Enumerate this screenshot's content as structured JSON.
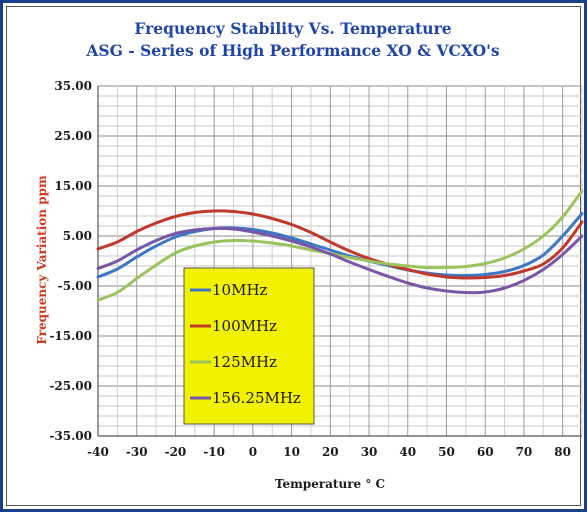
{
  "chart_data": {
    "type": "line",
    "title": "Frequency Stability Vs. Temperature",
    "subtitle": "ASG - Series of High Performance XO & VCXO's",
    "xlabel": "Temperature ° C",
    "ylabel": "Frequency Variation ppm",
    "xlim": [
      -40,
      85
    ],
    "ylim": [
      -35,
      35
    ],
    "x_ticks": [
      "-40",
      "-30",
      "-20",
      "-10",
      "0",
      "10",
      "20",
      "30",
      "40",
      "50",
      "60",
      "70",
      "80"
    ],
    "y_ticks": [
      "35.00",
      "25.00",
      "15.00",
      "5.00",
      "-5.00",
      "-15.00",
      "-25.00",
      "-35.00"
    ],
    "grid": true,
    "legend_position": "lower-left",
    "x": [
      -40,
      -35,
      -30,
      -25,
      -20,
      -15,
      -10,
      -5,
      0,
      5,
      10,
      15,
      20,
      25,
      30,
      35,
      40,
      45,
      50,
      55,
      60,
      65,
      70,
      75,
      80,
      85
    ],
    "series": [
      {
        "name": "10MHz",
        "color": "#3f77c7",
        "values": [
          -3.2,
          -1.6,
          0.8,
          3.0,
          4.8,
          5.9,
          6.5,
          6.6,
          6.3,
          5.6,
          4.6,
          3.4,
          2.2,
          1.0,
          0.0,
          -0.9,
          -1.8,
          -2.4,
          -2.8,
          -2.9,
          -2.7,
          -2.1,
          -0.9,
          1.2,
          5.0,
          9.5
        ]
      },
      {
        "name": "100MHz",
        "color": "#c0392b",
        "values": [
          2.4,
          3.8,
          5.9,
          7.6,
          8.9,
          9.7,
          10.0,
          9.9,
          9.4,
          8.5,
          7.3,
          5.7,
          3.8,
          2.0,
          0.5,
          -0.7,
          -1.7,
          -2.6,
          -3.2,
          -3.4,
          -3.3,
          -2.9,
          -2.0,
          -0.6,
          2.6,
          7.8
        ]
      },
      {
        "name": "125MHz",
        "color": "#9bc35b",
        "values": [
          -7.8,
          -6.3,
          -3.5,
          -0.8,
          1.6,
          3.0,
          3.8,
          4.1,
          4.0,
          3.6,
          3.0,
          2.2,
          1.5,
          0.7,
          0.0,
          -0.6,
          -1.0,
          -1.3,
          -1.3,
          -1.1,
          -0.5,
          0.6,
          2.4,
          5.0,
          8.8,
          14.0
        ]
      },
      {
        "name": "156.25MHz",
        "color": "#7857a8",
        "values": [
          -1.5,
          0.0,
          2.2,
          4.1,
          5.5,
          6.2,
          6.5,
          6.4,
          5.8,
          5.0,
          4.0,
          2.8,
          1.4,
          -0.2,
          -1.7,
          -3.1,
          -4.4,
          -5.4,
          -6.0,
          -6.3,
          -6.2,
          -5.4,
          -3.9,
          -1.7,
          1.3,
          5.0
        ]
      }
    ]
  },
  "colors": {
    "title": "#1f45a8",
    "ylabel": "#d03a22",
    "legend_background": "#f2f200",
    "frame": "#1c3f8c"
  }
}
